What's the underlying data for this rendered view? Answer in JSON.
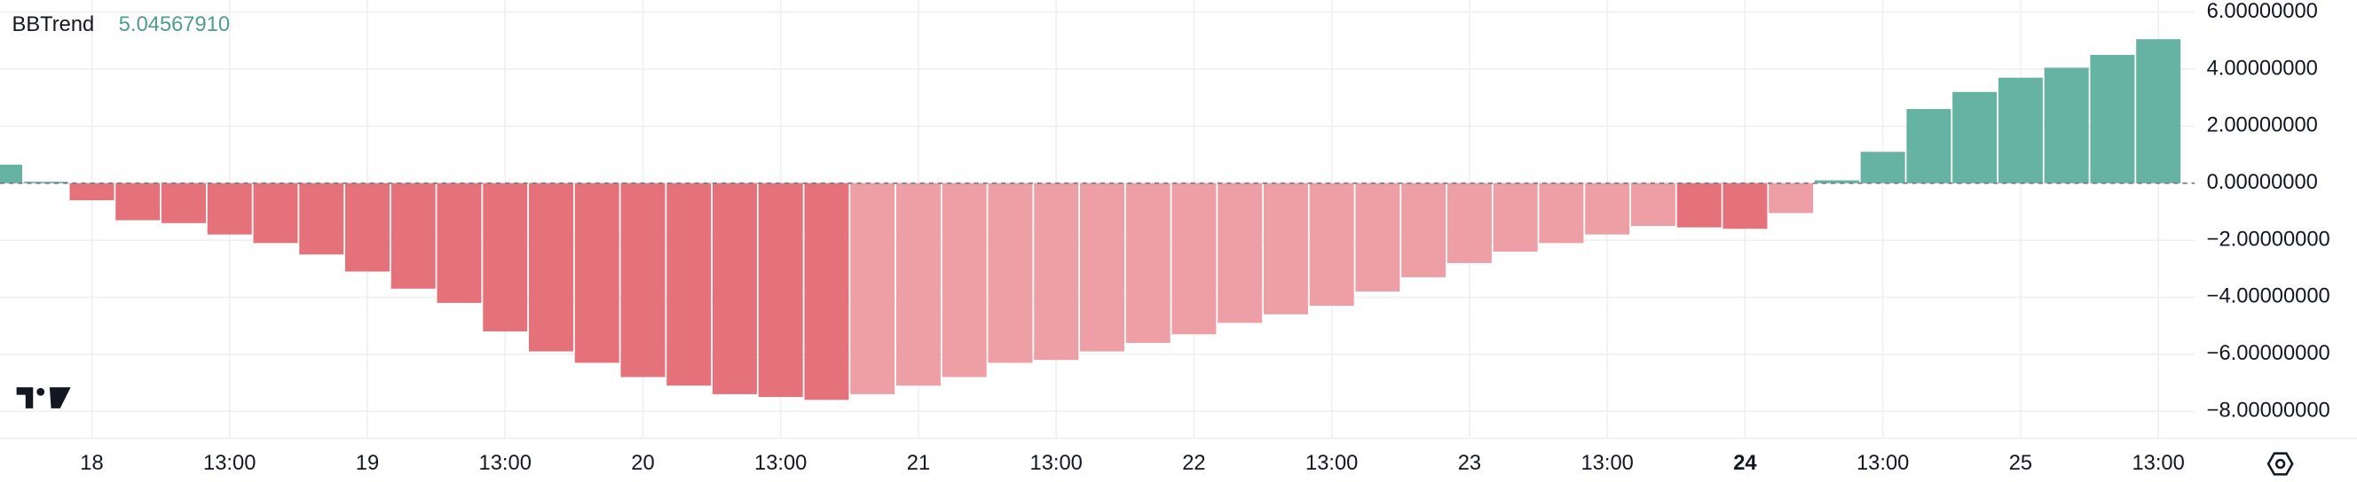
{
  "chart_data": {
    "type": "bar",
    "indicator": "BBTrend",
    "indicator_value": "5.04567910",
    "categories": [
      null,
      null,
      "18",
      null,
      null,
      "13:00",
      null,
      null,
      "19",
      null,
      null,
      "13:00",
      null,
      null,
      "20",
      null,
      null,
      "13:00",
      null,
      null,
      "21",
      null,
      null,
      "13:00",
      null,
      null,
      "22",
      null,
      null,
      "13:00",
      null,
      null,
      "23",
      null,
      null,
      "13:00",
      null,
      null,
      "24",
      null,
      null,
      "13:00",
      null,
      null,
      "25",
      null,
      null,
      "13:00"
    ],
    "values": [
      0.65,
      0.05,
      -0.6,
      -1.3,
      -1.4,
      -1.8,
      -2.1,
      -2.5,
      -3.1,
      -3.7,
      -4.2,
      -5.2,
      -5.9,
      -6.3,
      -6.8,
      -7.1,
      -7.4,
      -7.5,
      -7.6,
      -7.4,
      -7.1,
      -6.8,
      -6.3,
      -6.2,
      -5.9,
      -5.6,
      -5.3,
      -4.9,
      -4.6,
      -4.3,
      -3.8,
      -3.3,
      -2.8,
      -2.4,
      -2.1,
      -1.8,
      -1.5,
      -1.55,
      -1.6,
      -1.05,
      0.1,
      1.1,
      2.6,
      3.2,
      3.7,
      4.05,
      4.5,
      5.05
    ],
    "colors": [
      "#66b3a3",
      "#66b3a3",
      "#e5717a",
      "#e5717a",
      "#e5717a",
      "#e5717a",
      "#e5717a",
      "#e5717a",
      "#e5717a",
      "#e5717a",
      "#e5717a",
      "#e5717a",
      "#e5717a",
      "#e5717a",
      "#e5717a",
      "#e5717a",
      "#e5717a",
      "#e5717a",
      "#e5717a",
      "#ee9fa6",
      "#ee9fa6",
      "#ee9fa6",
      "#ee9fa6",
      "#ee9fa6",
      "#ee9fa6",
      "#ee9fa6",
      "#ee9fa6",
      "#ee9fa6",
      "#ee9fa6",
      "#ee9fa6",
      "#ee9fa6",
      "#ee9fa6",
      "#ee9fa6",
      "#ee9fa6",
      "#ee9fa6",
      "#ee9fa6",
      "#ee9fa6",
      "#e5717a",
      "#e5717a",
      "#ee9fa6",
      "#66b3a3",
      "#66b3a3",
      "#66b3a3",
      "#66b3a3",
      "#66b3a3",
      "#66b3a3",
      "#66b3a3",
      "#66b3a3"
    ],
    "bold_ticks": [
      38
    ],
    "ylim": [
      -8.95,
      6.42
    ],
    "yticks": [
      {
        "value": 6,
        "label": "6.00000000"
      },
      {
        "value": 4,
        "label": "4.00000000"
      },
      {
        "value": 2,
        "label": "2.00000000"
      },
      {
        "value": 0,
        "label": "0.00000000"
      },
      {
        "value": -2,
        "label": "−2.00000000"
      },
      {
        "value": -4,
        "label": "−4.00000000"
      },
      {
        "value": -6,
        "label": "−6.00000000"
      },
      {
        "value": -8,
        "label": "−8.00000000"
      }
    ],
    "grid": true
  }
}
